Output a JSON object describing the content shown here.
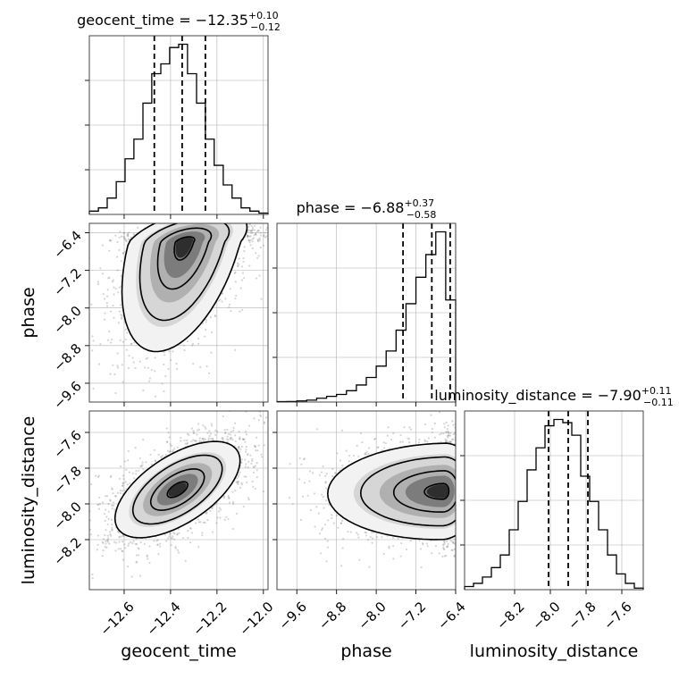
{
  "chart_data": {
    "type": "corner",
    "parameters": [
      "geocent_time",
      "phase",
      "luminosity_distance"
    ],
    "axis_labels": [
      "geocent_time",
      "phase",
      "luminosity_distance"
    ],
    "grid": true,
    "marginals": [
      {
        "parameter": "geocent_time",
        "title": {
          "text": "geocent_time = −12.35",
          "sup": "+0.10",
          "sub": "−0.12"
        },
        "quantiles": [
          -12.47,
          -12.35,
          -12.25
        ],
        "range": [
          -12.75,
          -11.98
        ],
        "bin_edges": [
          -12.75,
          -12.711,
          -12.673,
          -12.634,
          -12.596,
          -12.558,
          -12.519,
          -12.481,
          -12.442,
          -12.404,
          -12.365,
          -12.327,
          -12.288,
          -12.25,
          -12.212,
          -12.173,
          -12.135,
          -12.096,
          -12.058,
          -12.019,
          -11.98
        ],
        "counts": [
          1,
          2,
          5,
          10,
          17,
          23,
          34,
          43,
          46,
          51,
          52,
          43,
          34,
          23,
          15,
          9,
          5,
          2,
          1,
          0.4
        ]
      },
      {
        "parameter": "phase",
        "title": {
          "text": "phase = −6.88",
          "sup": "+0.37",
          "sub": "−0.58"
        },
        "quantiles": [
          -7.46,
          -6.88,
          -6.51
        ],
        "range": [
          -10.0,
          -6.4
        ],
        "bin_edges": [
          -10.0,
          -9.8,
          -9.6,
          -9.4,
          -9.2,
          -9.0,
          -8.8,
          -8.6,
          -8.4,
          -8.2,
          -8.0,
          -7.8,
          -7.6,
          -7.4,
          -7.2,
          -7.0,
          -6.8,
          -6.6,
          -6.4
        ],
        "counts": [
          0.2,
          0.3,
          0.6,
          1,
          2,
          3,
          4,
          6,
          9,
          13,
          19,
          27,
          38,
          52,
          66,
          78,
          90,
          54
        ]
      },
      {
        "parameter": "luminosity_distance",
        "title": {
          "text": "luminosity_distance = −7.90",
          "sup": "+0.11",
          "sub": "−0.11"
        },
        "quantiles": [
          -8.01,
          -7.9,
          -7.79
        ],
        "range": [
          -8.48,
          -7.48
        ],
        "bin_edges": [
          -8.48,
          -8.43,
          -8.38,
          -8.33,
          -8.28,
          -8.23,
          -8.18,
          -8.13,
          -8.08,
          -8.03,
          -7.98,
          -7.93,
          -7.88,
          -7.83,
          -7.78,
          -7.73,
          -7.68,
          -7.63,
          -7.58,
          -7.53,
          -7.48
        ],
        "counts": [
          1,
          2,
          4,
          7,
          11,
          19,
          28,
          38,
          45,
          52,
          54,
          53,
          49,
          36,
          28,
          19,
          11,
          5,
          2,
          0.5
        ]
      }
    ],
    "panels": {
      "phase_vs_geocent_time": {
        "x": "geocent_time",
        "y": "phase",
        "xlim": [
          -12.75,
          -11.98
        ],
        "ylim": [
          -10.0,
          -6.2
        ],
        "mode": [
          -12.34,
          -6.6
        ],
        "correlation": 0.45
      },
      "luminosity_distance_vs_geocent_time": {
        "x": "geocent_time",
        "y": "luminosity_distance",
        "xlim": [
          -12.75,
          -11.98
        ],
        "ylim": [
          -8.48,
          -7.48
        ],
        "mode": [
          -12.37,
          -7.92
        ],
        "correlation": 0.6
      },
      "luminosity_distance_vs_phase": {
        "x": "phase",
        "y": "luminosity_distance",
        "xlim": [
          -10.0,
          -6.4
        ],
        "ylim": [
          -8.48,
          -7.48
        ],
        "mode": [
          -6.65,
          -7.93
        ],
        "correlation": 0.05
      }
    },
    "ticks": {
      "geocent_time": {
        "values": [
          -12.6,
          -12.4,
          -12.2,
          -12.0
        ],
        "labels": [
          "−12.6",
          "−12.4",
          "−12.2",
          "−12.0"
        ]
      },
      "phase_x": {
        "values": [
          -9.6,
          -8.8,
          -8.0,
          -7.2,
          -6.4
        ],
        "labels": [
          "−9.6",
          "−8.8",
          "−8.0",
          "−7.2",
          "−6.4"
        ]
      },
      "phase_y": {
        "values": [
          -9.6,
          -8.8,
          -8.0,
          -7.2,
          -6.4
        ],
        "labels": [
          "−9.6",
          "−8.8",
          "−8.0",
          "−7.2",
          "−6.4"
        ]
      },
      "luminosity_distance": {
        "values": [
          -8.2,
          -8.0,
          -7.8,
          -7.6
        ],
        "labels": [
          "−8.2",
          "−8.0",
          "−7.8",
          "−7.6"
        ]
      }
    }
  }
}
